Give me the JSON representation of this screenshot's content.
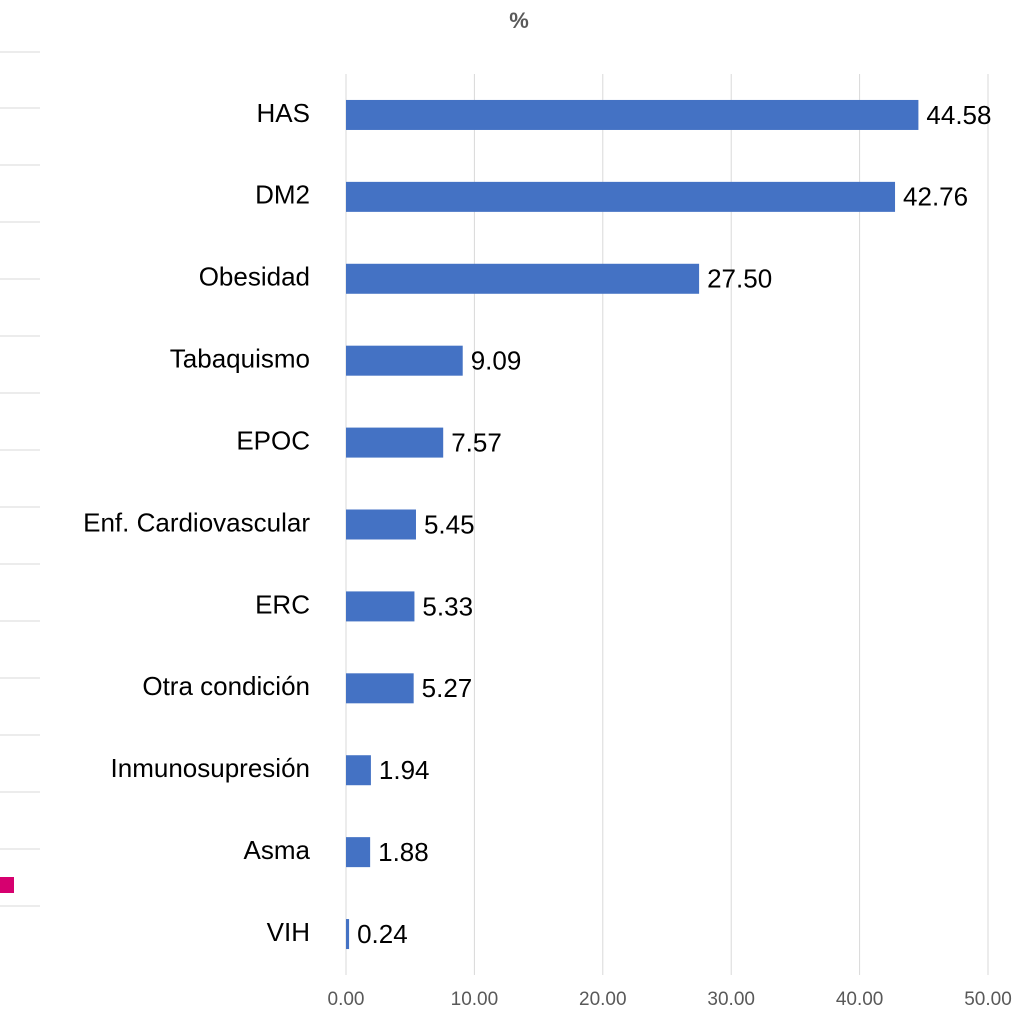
{
  "chart_data": {
    "type": "bar",
    "orientation": "horizontal",
    "title": "%",
    "categories": [
      "HAS",
      "DM2",
      "Obesidad",
      "Tabaquismo",
      "EPOC",
      "Enf. Cardiovascular",
      "ERC",
      "Otra condición",
      "Inmunosupresión",
      "Asma",
      "VIH"
    ],
    "values": [
      44.58,
      42.76,
      27.5,
      9.09,
      7.57,
      5.45,
      5.33,
      5.27,
      1.94,
      1.88,
      0.24
    ],
    "value_labels": [
      "44.58",
      "42.76",
      "27.50",
      "9.09",
      "7.57",
      "5.45",
      "5.33",
      "5.27",
      "1.94",
      "1.88",
      "0.24"
    ],
    "color": "#4472c4",
    "xlim": [
      0,
      50
    ],
    "xticks": [
      {
        "value": 0,
        "label": "0.00"
      },
      {
        "value": 10,
        "label": "10.00"
      },
      {
        "value": 20,
        "label": "20.00"
      },
      {
        "value": 30,
        "label": "30.00"
      },
      {
        "value": 40,
        "label": "40.00"
      },
      {
        "value": 50,
        "label": "50.00"
      }
    ],
    "grid": true
  }
}
